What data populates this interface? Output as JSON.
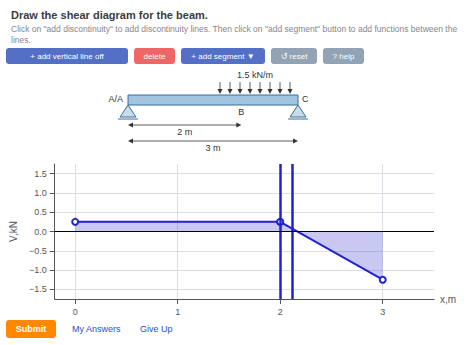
{
  "chart_data": {
    "type": "area",
    "title": "Draw the shear diagram for the beam.",
    "subtitle": "Click on \"add discontinuity\" to add discontinuity lines. Then click on \"add segment\" button to add functions between the lines.",
    "xlabel": "x,m",
    "ylabel": "V,kN",
    "xlim": [
      -0.2,
      3.5
    ],
    "xticks": [
      0,
      1,
      2,
      3
    ],
    "ylim": [
      -1.75,
      1.75
    ],
    "yticks": [
      {
        "value": -1.5,
        "label": "−1.5"
      },
      {
        "value": -1.0,
        "label": "−1.0"
      },
      {
        "value": -0.5,
        "label": "−0.5"
      },
      {
        "value": 0,
        "label": "0.0"
      },
      0.5,
      {
        "value": 1.0,
        "label": "1.0"
      },
      1.5
    ],
    "grid": true,
    "series": [
      {
        "x": [
          0,
          2
        ],
        "values": [
          0.25,
          0.25
        ],
        "color": "#2222CC",
        "marker": "circle"
      },
      {
        "x": [
          2,
          3
        ],
        "values": [
          0.25,
          -1.25
        ],
        "color": "#2222CC",
        "marker": "circle"
      }
    ],
    "vertical_lines": [
      2.0,
      2.12
    ],
    "annotations": {
      "toolbar_buttons": [
        "+ add vertical line off",
        "delete",
        "+ add segment ▼",
        "↺ reset",
        "? help"
      ],
      "beam": {
        "load": "1.5 kN/m",
        "label_A": "A/A",
        "label_B": "B",
        "label_C": "C",
        "dim1": "2 m",
        "dim2": "3 m"
      },
      "links": [
        "Submit",
        "My Answers",
        "Give Up"
      ]
    }
  }
}
